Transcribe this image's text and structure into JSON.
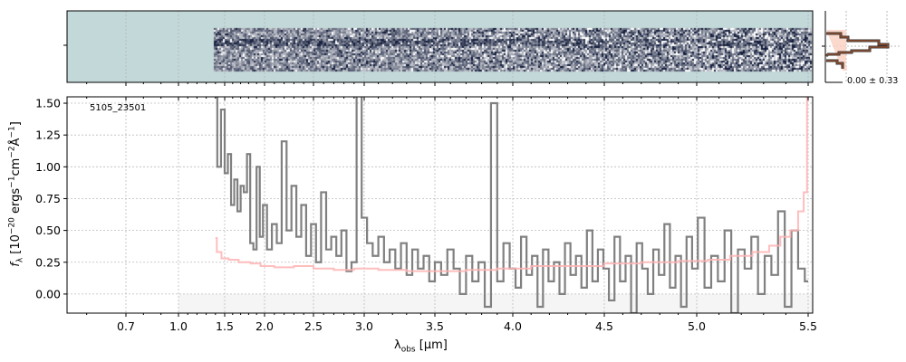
{
  "chart_data": [
    {
      "type": "line",
      "name": "2D spectrum",
      "description_label": "",
      "yticks": [
        ""
      ]
    },
    {
      "type": "line",
      "object_label": "5105_23501",
      "xlabel": {
        "main": "λ",
        "sub": "obs",
        "rest": " [μm]"
      },
      "ylabel": {
        "f": "f",
        "fsub": "λ",
        "a": " [10",
        "e1": "−20",
        "b": " ergs",
        "e2": "−1",
        "c": "cm",
        "e3": "−2",
        "d": "Å",
        "e4": "−1",
        "e": "]"
      },
      "xticks": [
        0.7,
        1.0,
        1.5,
        2.0,
        2.5,
        3.0,
        3.5,
        4.0,
        4.5,
        5.0,
        5.5
      ],
      "xtick_labels": [
        "0.7",
        "1.0",
        "1.5",
        "2.0",
        "2.5",
        "3.0",
        "3.5",
        "4.0",
        "4.5",
        "5.0",
        "5.5"
      ],
      "yticks": [
        0,
        0.25,
        0.5,
        0.75,
        1.0,
        1.25,
        1.5
      ],
      "ytick_labels": [
        "0.00",
        "0.25",
        "0.50",
        "0.75",
        "1.00",
        "1.25",
        "1.50"
      ],
      "xlim": [
        0.55,
        5.52
      ],
      "ylim": [
        -0.15,
        1.55
      ],
      "grid": true,
      "series": [
        {
          "name": "observed flux",
          "color": "#808080",
          "x": [
            1.4,
            1.44,
            1.48,
            1.52,
            1.56,
            1.6,
            1.64,
            1.68,
            1.72,
            1.76,
            1.8,
            1.84,
            1.88,
            1.92,
            1.96,
            2.0,
            2.05,
            2.1,
            2.15,
            2.2,
            2.25,
            2.3,
            2.35,
            2.4,
            2.45,
            2.5,
            2.55,
            2.6,
            2.65,
            2.7,
            2.75,
            2.8,
            2.85,
            2.9,
            2.95,
            3.0,
            3.04,
            3.08,
            3.12,
            3.16,
            3.2,
            3.24,
            3.28,
            3.32,
            3.36,
            3.4,
            3.44,
            3.48,
            3.52,
            3.56,
            3.6,
            3.64,
            3.68,
            3.72,
            3.76,
            3.8,
            3.84,
            3.88,
            3.92,
            3.96,
            4.0,
            4.03,
            4.06,
            4.09,
            4.12,
            4.15,
            4.18,
            4.21,
            4.24,
            4.27,
            4.3,
            4.33,
            4.36,
            4.39,
            4.42,
            4.45,
            4.48,
            4.51,
            4.54,
            4.57,
            4.6,
            4.63,
            4.66,
            4.69,
            4.72,
            4.75,
            4.78,
            4.81,
            4.84,
            4.87,
            4.9,
            4.93,
            4.96,
            4.99,
            5.02,
            5.05,
            5.08,
            5.11,
            5.14,
            5.17,
            5.2,
            5.23,
            5.26,
            5.29,
            5.32,
            5.35,
            5.38,
            5.41,
            5.44,
            5.47,
            5.5
          ],
          "y": [
            1.6,
            1.0,
            1.45,
            0.95,
            1.1,
            0.7,
            0.9,
            0.65,
            0.85,
            0.8,
            1.1,
            0.4,
            0.35,
            1.0,
            0.45,
            0.7,
            0.35,
            0.55,
            0.4,
            1.2,
            0.5,
            0.85,
            0.45,
            0.7,
            0.3,
            0.55,
            0.25,
            0.8,
            0.35,
            0.45,
            0.3,
            0.5,
            0.18,
            0.25,
            1.6,
            0.6,
            0.4,
            0.3,
            0.45,
            0.25,
            0.35,
            0.2,
            0.4,
            0.15,
            0.35,
            0.2,
            0.3,
            0.1,
            0.25,
            0.15,
            0.35,
            0.2,
            0.0,
            0.3,
            0.1,
            0.25,
            -0.1,
            1.5,
            0.1,
            0.4,
            0.2,
            0.05,
            0.45,
            0.15,
            0.3,
            -0.1,
            0.35,
            0.1,
            0.25,
            0.0,
            0.4,
            0.15,
            0.3,
            0.05,
            0.5,
            0.1,
            0.35,
            0.2,
            -0.05,
            0.45,
            0.1,
            0.3,
            -0.15,
            0.4,
            0.2,
            0.0,
            0.35,
            0.15,
            0.55,
            0.05,
            0.3,
            -0.1,
            0.45,
            0.2,
            0.6,
            0.05,
            0.3,
            0.1,
            0.5,
            -0.15,
            0.35,
            0.2,
            0.45,
            0.0,
            0.3,
            0.15,
            0.65,
            -0.1,
            0.5,
            0.2,
            0.1
          ]
        },
        {
          "name": "model",
          "color": "#ffb3b3",
          "x": [
            1.4,
            1.43,
            1.5,
            1.6,
            1.75,
            1.9,
            2.0,
            2.2,
            2.4,
            2.6,
            2.8,
            3.0,
            3.2,
            3.4,
            3.6,
            3.8,
            4.0,
            4.2,
            4.4,
            4.6,
            4.8,
            5.0,
            5.1,
            5.2,
            5.3,
            5.35,
            5.4,
            5.44,
            5.47,
            5.49,
            5.5
          ],
          "y": [
            0.44,
            0.33,
            0.28,
            0.27,
            0.25,
            0.24,
            0.22,
            0.21,
            0.22,
            0.2,
            0.19,
            0.2,
            0.19,
            0.18,
            0.18,
            0.19,
            0.2,
            0.22,
            0.22,
            0.24,
            0.25,
            0.26,
            0.27,
            0.3,
            0.33,
            0.38,
            0.45,
            0.5,
            0.65,
            0.8,
            1.55
          ]
        }
      ]
    },
    {
      "type": "histogram",
      "name": "residual distribution",
      "stat_label": "0.00 ± 0.33"
    }
  ]
}
